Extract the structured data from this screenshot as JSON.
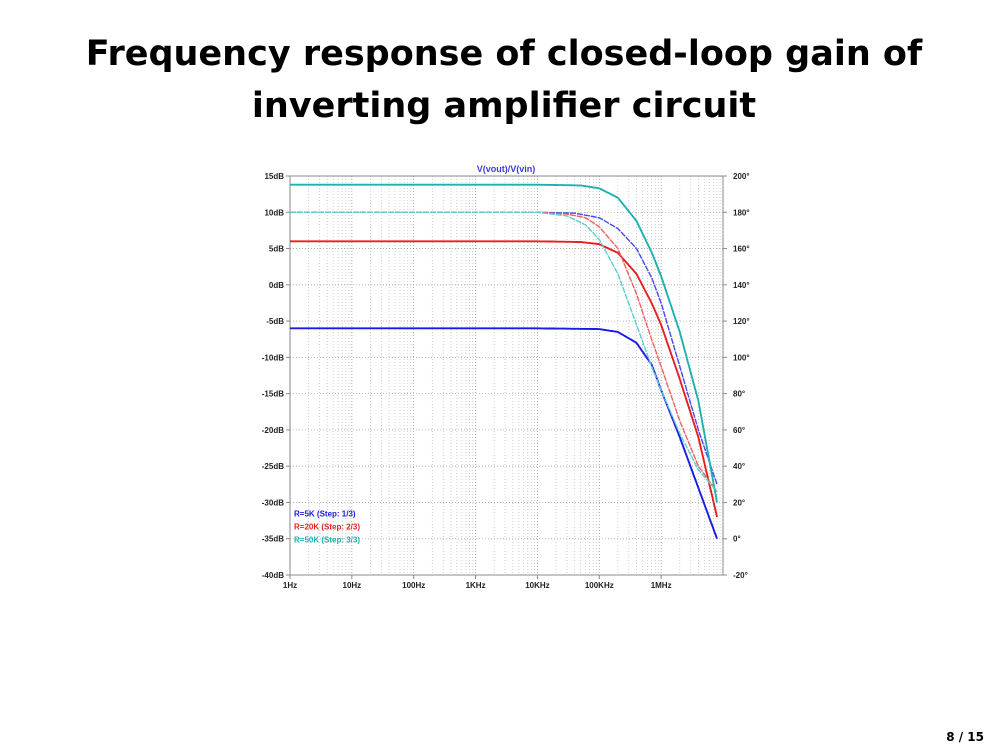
{
  "slide": {
    "title_line1": "Frequency response of closed-loop gain of",
    "title_line2": "inverting amplifier circuit",
    "page_number": "8 / 15"
  },
  "chart_data": {
    "type": "line",
    "title": "V(vout)/V(vin)",
    "x_scale": "log",
    "x_ticks": [
      "1Hz",
      "10Hz",
      "100Hz",
      "1KHz",
      "10KHz",
      "100KHz",
      "1MHz"
    ],
    "y_ticks": [
      "15dB",
      "10dB",
      "5dB",
      "0dB",
      "-5dB",
      "-10dB",
      "-15dB",
      "-20dB",
      "-25dB",
      "-30dB",
      "-35dB",
      "-40dB"
    ],
    "y_tick_values": [
      15,
      10,
      5,
      0,
      -5,
      -10,
      -15,
      -20,
      -25,
      -30,
      -35,
      -40
    ],
    "y2_ticks": [
      "200°",
      "180°",
      "160°",
      "140°",
      "120°",
      "100°",
      "80°",
      "60°",
      "40°",
      "20°",
      "0°",
      "-20°"
    ],
    "xlim_hz": [
      1,
      10000000
    ],
    "ylim_db": [
      -40,
      15
    ],
    "y2lim_deg": [
      -20,
      200
    ],
    "grid": true,
    "legend_position": "bottom-left",
    "legend": [
      {
        "label": "R=5K  (Step: 1/3)",
        "color": "#1a1ae6"
      },
      {
        "label": "R=20K  (Step: 2/3)",
        "color": "#e62020"
      },
      {
        "label": "R=50K  (Step: 3/3)",
        "color": "#1fb0b0"
      }
    ],
    "series": [
      {
        "name": "R=5K  (Step: 1/3)",
        "quantity": "magnitude",
        "color": "#1a1ae6",
        "x": [
          1,
          10000,
          100000,
          200000,
          400000,
          700000,
          1000000,
          2000000,
          4000000,
          8000000
        ],
        "y": [
          -6.0,
          -6.0,
          -6.1,
          -6.5,
          -8.0,
          -11.0,
          -14.5,
          -21.0,
          -28.0,
          -35.0
        ]
      },
      {
        "name": "R=5K  (Step: 1/3)",
        "quantity": "phase",
        "color": "#4848f0",
        "x": [
          1,
          10000,
          40000,
          100000,
          200000,
          400000,
          700000,
          1000000,
          2000000,
          4000000,
          8000000
        ],
        "y": [
          180,
          180,
          179.5,
          177,
          171,
          160,
          144,
          130,
          95,
          60,
          30
        ]
      },
      {
        "name": "R=20K  (Step: 2/3)",
        "quantity": "magnitude",
        "color": "#e62020",
        "x": [
          1,
          10000,
          50000,
          100000,
          200000,
          400000,
          700000,
          1000000,
          2000000,
          4000000,
          8000000
        ],
        "y": [
          6.0,
          6.0,
          5.9,
          5.6,
          4.4,
          1.5,
          -2.5,
          -5.5,
          -13.0,
          -21.0,
          -32.0
        ]
      },
      {
        "name": "R=20K  (Step: 2/3)",
        "quantity": "phase",
        "color": "#f06060",
        "x": [
          1,
          10000,
          30000,
          60000,
          100000,
          200000,
          400000,
          700000,
          1000000,
          2000000,
          4000000,
          8000000
        ],
        "y": [
          180,
          180,
          179,
          177,
          172,
          160,
          135,
          110,
          95,
          65,
          40,
          26
        ]
      },
      {
        "name": "R=50K  (Step: 3/3)",
        "quantity": "magnitude",
        "color": "#1fb0b0",
        "x": [
          1,
          10000,
          50000,
          100000,
          200000,
          400000,
          700000,
          1000000,
          2000000,
          4000000,
          8000000
        ],
        "y": [
          13.8,
          13.8,
          13.7,
          13.3,
          12.0,
          8.8,
          4.5,
          1.2,
          -6.5,
          -16.0,
          -30.0
        ]
      },
      {
        "name": "R=50K  (Step: 3/3)",
        "quantity": "phase",
        "color": "#5fcccc",
        "x": [
          1,
          10000,
          30000,
          60000,
          100000,
          200000,
          400000,
          700000,
          1000000,
          2000000,
          4000000,
          8000000
        ],
        "y": [
          180,
          180,
          178,
          173,
          165,
          146,
          118,
          95,
          82,
          58,
          38,
          26
        ]
      }
    ]
  }
}
